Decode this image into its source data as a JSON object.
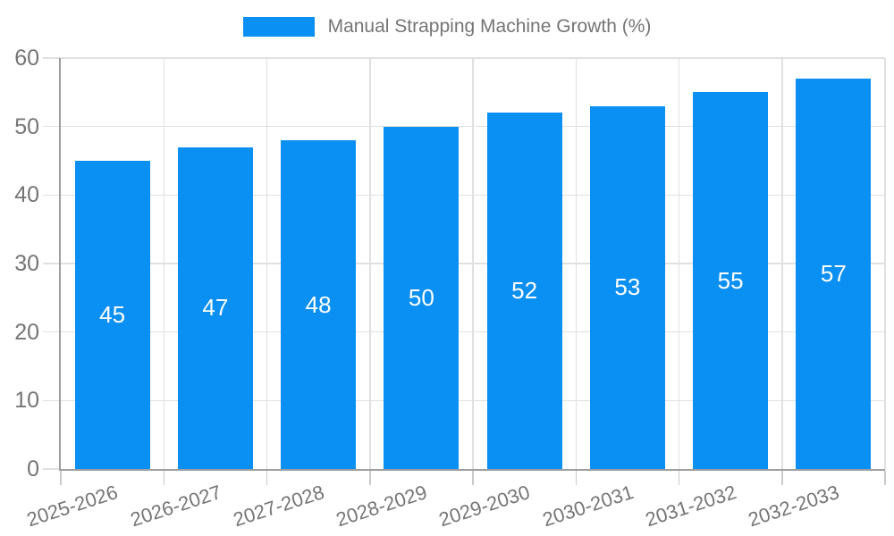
{
  "legend": {
    "label": "Manual Strapping Machine Growth (%)"
  },
  "colors": {
    "bar": "#0a8ff2",
    "value_label": "#ffffff",
    "grid": "#e0e0e0",
    "axis": "#9e9e9e",
    "text": "#757575"
  },
  "chart_data": {
    "type": "bar",
    "title": "Manual Strapping Machine Growth (%)",
    "categories": [
      "2025-2026",
      "2026-2027",
      "2027-2028",
      "2028-2029",
      "2029-2030",
      "2030-2031",
      "2031-2032",
      "2032-2033"
    ],
    "values": [
      45,
      47,
      48,
      50,
      52,
      53,
      55,
      57
    ],
    "xlabel": "",
    "ylabel": "",
    "ylim": [
      0,
      60
    ],
    "yticks": [
      0,
      10,
      20,
      30,
      40,
      50,
      60
    ],
    "grid": true,
    "legend_position": "top",
    "value_labels_inside_bars": true
  }
}
